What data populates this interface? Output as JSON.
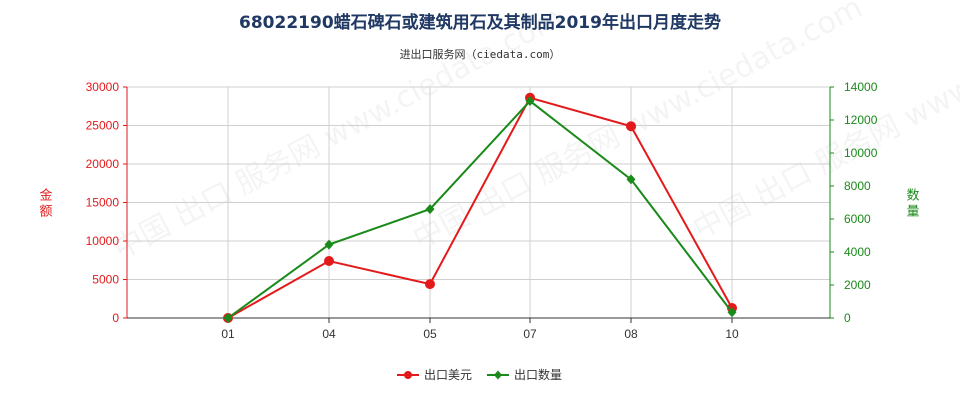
{
  "title": "68022190蜡石碑石或建筑用石及其制品2019年出口月度走势",
  "subtitle": "进出口服务网（ciedata.com）",
  "watermark": "中国 出口 服务网 www.ciedata.com",
  "colors": {
    "amount": "#e31a1c",
    "quantity": "#1a8a1a",
    "grid": "#d0d0d0",
    "axis_text": "#333333"
  },
  "chart_data": {
    "type": "line",
    "categories": [
      "01",
      "04",
      "05",
      "07",
      "08",
      "10"
    ],
    "ylabel_left": "金额",
    "ylabel_right": "数量",
    "ylim_left": [
      0,
      30000
    ],
    "ylim_right": [
      0,
      14000
    ],
    "yticks_left": [
      "0",
      "5000",
      "10000",
      "15000",
      "20000",
      "25000",
      "30000"
    ],
    "yticks_right": [
      "0",
      "2000",
      "4000",
      "6000",
      "8000",
      "10000",
      "12000",
      "14000"
    ],
    "grid": true,
    "legend_position": "bottom",
    "series": [
      {
        "name": "出口美元",
        "axis": "left",
        "marker": "circle",
        "values": [
          0,
          7400,
          4400,
          28600,
          24900,
          1300
        ]
      },
      {
        "name": "出口数量",
        "axis": "right",
        "marker": "diamond",
        "values": [
          0,
          4450,
          6600,
          13150,
          8400,
          350
        ]
      }
    ]
  }
}
